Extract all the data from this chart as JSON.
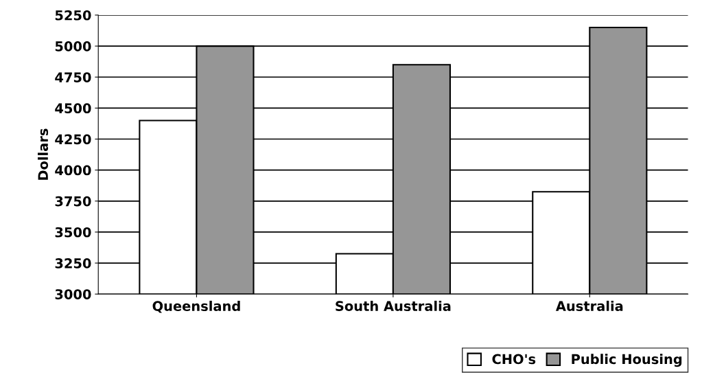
{
  "chart_data": {
    "type": "bar",
    "ylabel": "Dollars",
    "categories": [
      "Queensland",
      "South Australia",
      "Australia"
    ],
    "series": [
      {
        "name": "CHO's",
        "color": "#ffffff",
        "values": [
          4400,
          3325,
          3825
        ]
      },
      {
        "name": "Public Housing",
        "color": "#969696",
        "values": [
          5000,
          4850,
          5150
        ]
      }
    ],
    "ylim": [
      3000,
      5250
    ],
    "yticks": [
      3000,
      3250,
      3500,
      3750,
      4000,
      4250,
      4500,
      4750,
      5000,
      5250
    ],
    "grid": "y",
    "legend": "bottom right"
  }
}
